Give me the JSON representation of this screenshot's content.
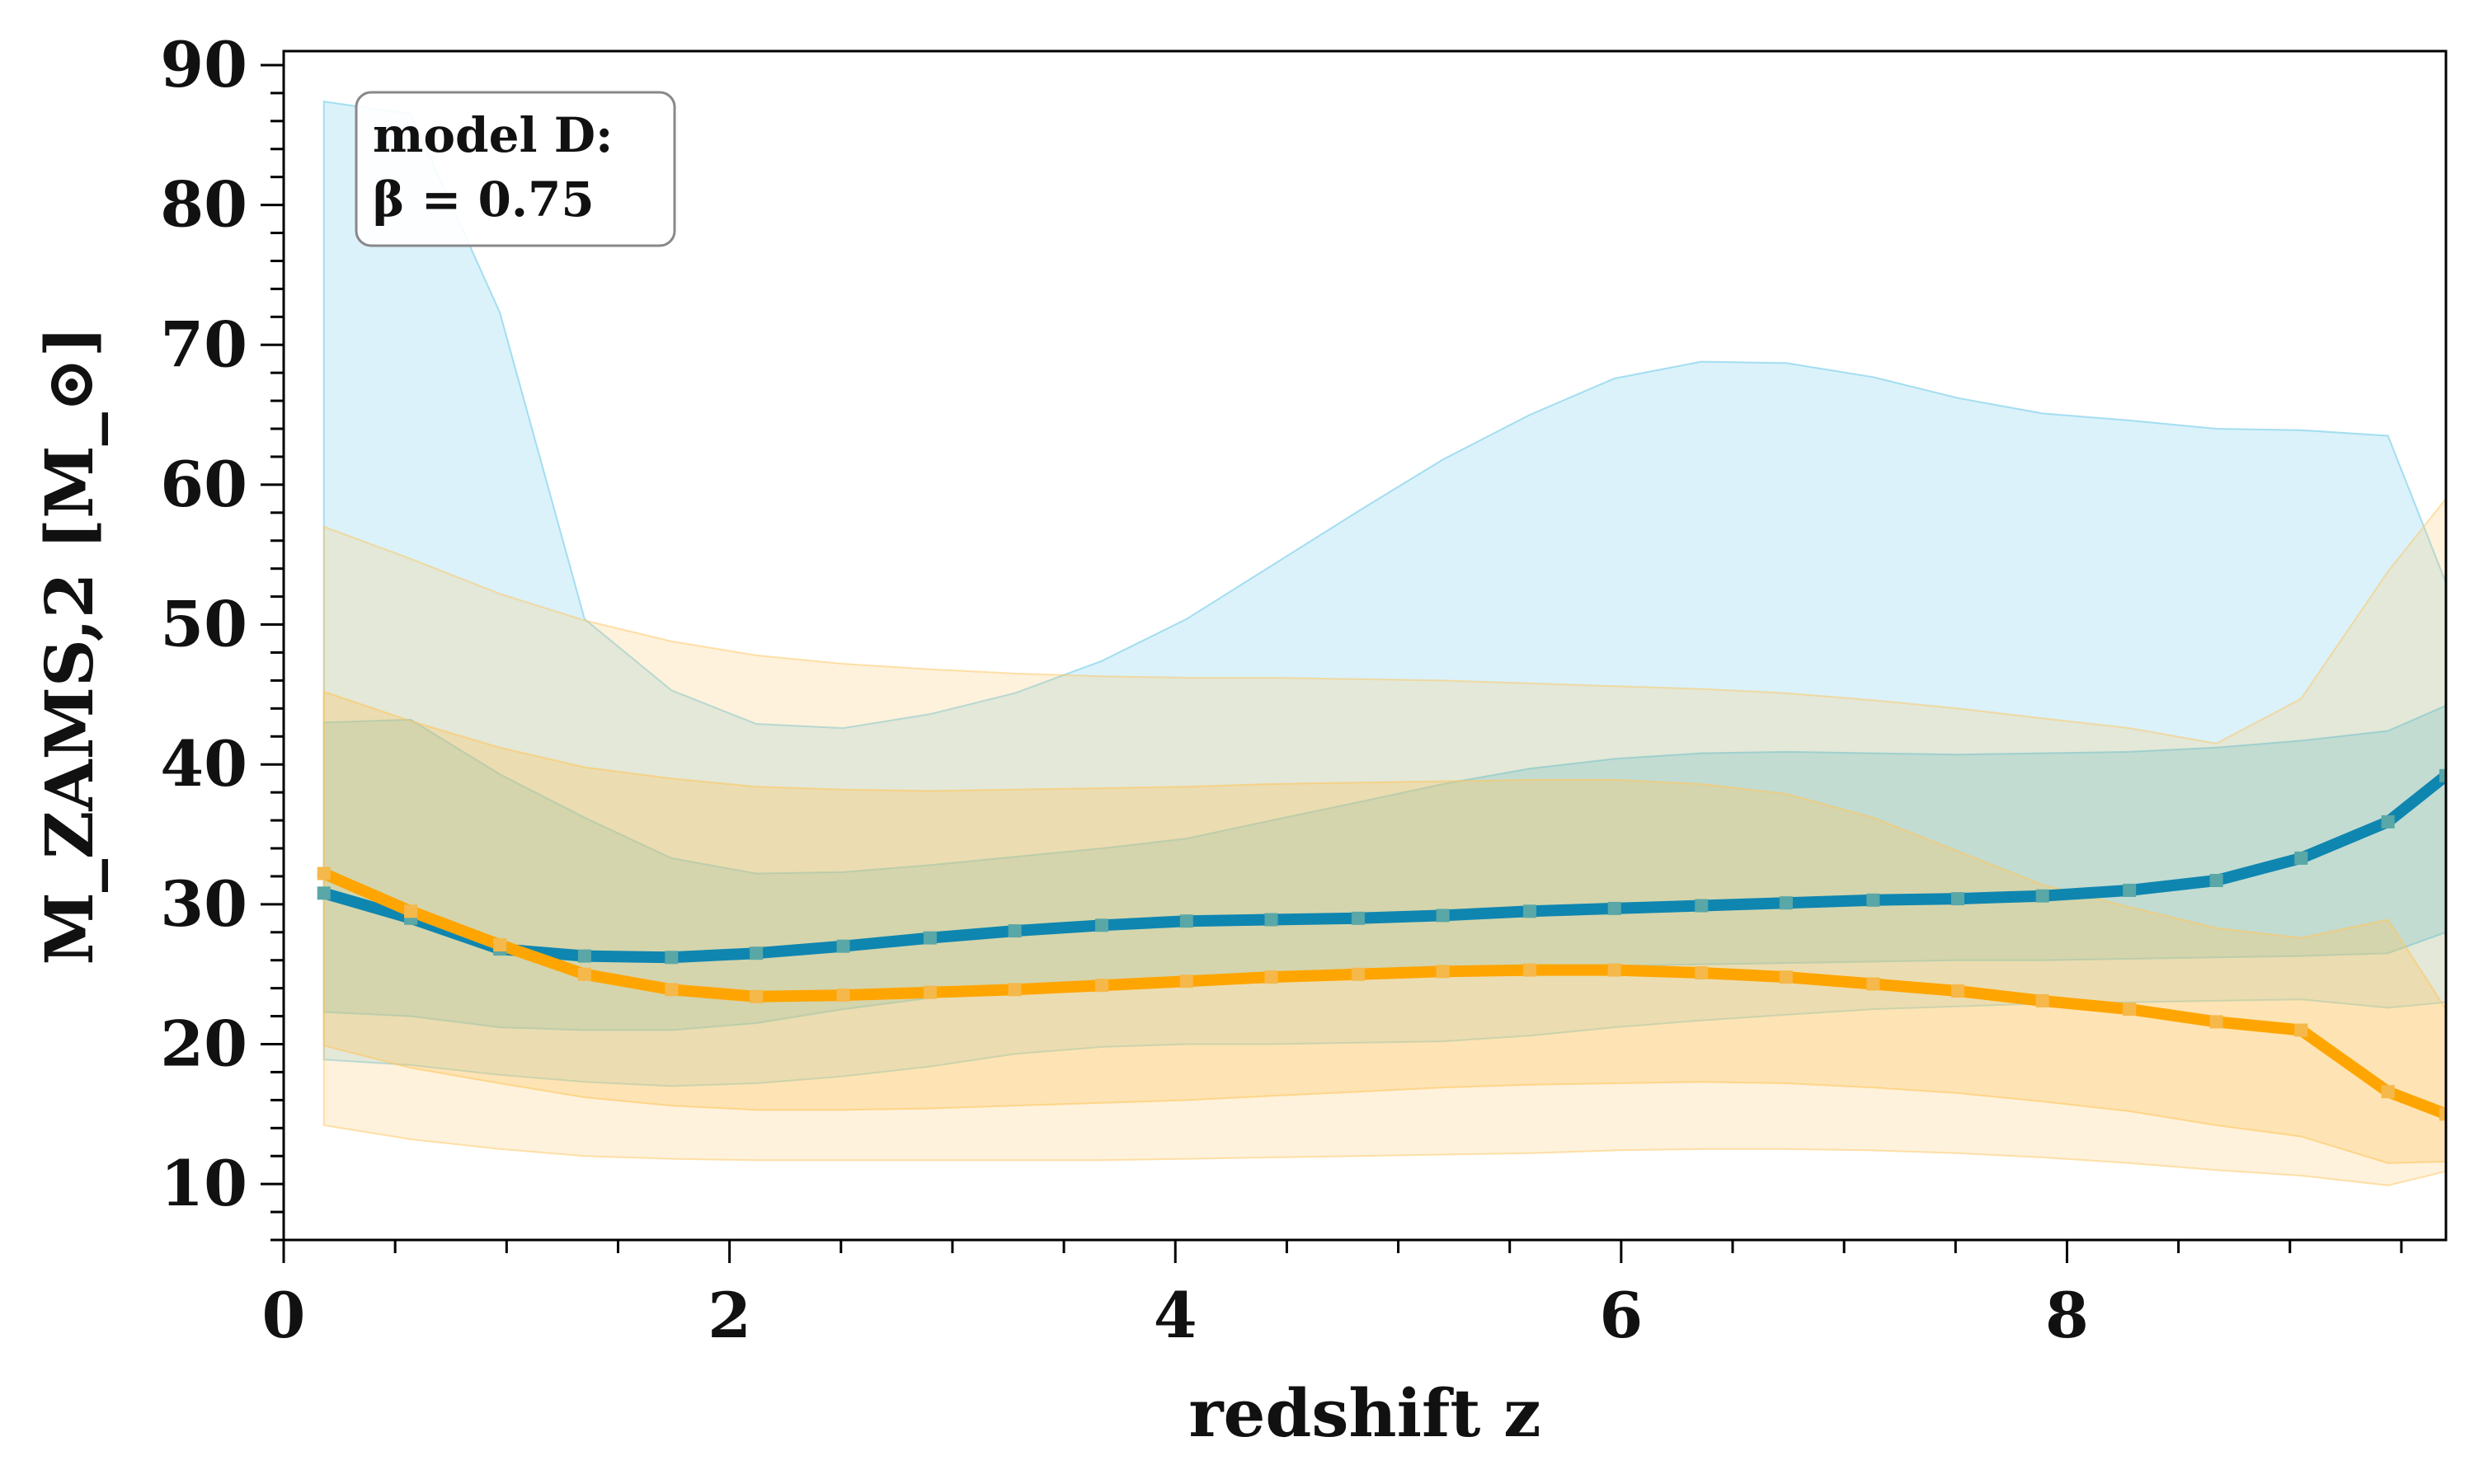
{
  "chart_data": {
    "type": "line",
    "xlabel": "redshift z",
    "ylabel": "M_ZAMS,2 [M_⊙]",
    "xlim": [
      0,
      9.7
    ],
    "ylim": [
      6,
      91
    ],
    "x_major_ticks": [
      0,
      2,
      4,
      6,
      8
    ],
    "x_tick_labels": [
      "0",
      "2",
      "4",
      "6",
      "8"
    ],
    "x_minor_step": 0.5,
    "y_major_ticks": [
      10,
      20,
      30,
      40,
      50,
      60,
      70,
      80,
      90
    ],
    "y_tick_labels": [
      "10",
      "20",
      "30",
      "40",
      "50",
      "60",
      "70",
      "80",
      "90"
    ],
    "y_minor_step": 2,
    "grid": false,
    "annotation": {
      "line1": "model D:",
      "line2": "β = 0.75"
    },
    "x": [
      0.18,
      0.57,
      0.97,
      1.35,
      1.74,
      2.12,
      2.51,
      2.9,
      3.28,
      3.67,
      4.05,
      4.43,
      4.82,
      5.2,
      5.59,
      5.97,
      6.36,
      6.74,
      7.13,
      7.51,
      7.89,
      8.28,
      8.67,
      9.05,
      9.44,
      9.7
    ],
    "series": [
      {
        "color": "#0f86b0",
        "band_color": "#5bc4e6",
        "median": [
          30.8,
          29.0,
          26.8,
          26.3,
          26.2,
          26.5,
          27.0,
          27.6,
          28.1,
          28.5,
          28.8,
          28.9,
          29.0,
          29.2,
          29.5,
          29.7,
          29.9,
          30.1,
          30.3,
          30.4,
          30.6,
          31.0,
          31.7,
          33.3,
          35.9,
          39.2
        ],
        "inner_low": [
          22.3,
          22.0,
          21.2,
          21.0,
          21.0,
          21.5,
          22.5,
          23.3,
          24.0,
          24.4,
          24.8,
          25.0,
          25.1,
          25.3,
          25.5,
          25.6,
          25.7,
          25.8,
          25.9,
          26.0,
          26.0,
          26.1,
          26.2,
          26.3,
          26.5,
          28.0
        ],
        "inner_high": [
          43.0,
          43.2,
          39.3,
          36.2,
          33.3,
          32.2,
          32.3,
          32.8,
          33.4,
          34.0,
          34.7,
          36.0,
          37.3,
          38.6,
          39.7,
          40.4,
          40.8,
          40.9,
          40.8,
          40.7,
          40.8,
          40.9,
          41.2,
          41.7,
          42.4,
          44.2
        ],
        "outer_low": [
          18.9,
          18.5,
          17.8,
          17.3,
          17.0,
          17.2,
          17.7,
          18.4,
          19.3,
          19.8,
          20.0,
          20.0,
          20.1,
          20.2,
          20.6,
          21.2,
          21.7,
          22.1,
          22.5,
          22.7,
          22.9,
          23.0,
          23.1,
          23.2,
          22.6,
          23.0
        ],
        "outer_high": [
          87.4,
          86.5,
          72.3,
          50.4,
          45.3,
          42.9,
          42.6,
          43.6,
          45.1,
          47.4,
          50.4,
          54.2,
          58.1,
          61.8,
          65.0,
          67.6,
          68.8,
          68.7,
          67.7,
          66.2,
          65.1,
          64.6,
          64.0,
          63.9,
          63.5,
          53.0
        ]
      },
      {
        "color": "#ffa502",
        "band_color": "#fdc660",
        "median": [
          32.2,
          29.5,
          27.1,
          25.0,
          23.9,
          23.4,
          23.5,
          23.7,
          23.9,
          24.2,
          24.5,
          24.8,
          25.0,
          25.2,
          25.3,
          25.3,
          25.1,
          24.8,
          24.3,
          23.8,
          23.1,
          22.5,
          21.6,
          21.0,
          16.6,
          15.0
        ],
        "inner_low": [
          19.9,
          18.3,
          17.2,
          16.2,
          15.6,
          15.3,
          15.3,
          15.4,
          15.6,
          15.8,
          16.0,
          16.3,
          16.6,
          16.9,
          17.1,
          17.2,
          17.3,
          17.2,
          16.9,
          16.5,
          15.9,
          15.2,
          14.2,
          13.4,
          11.5,
          11.6
        ],
        "inner_high": [
          45.2,
          43.1,
          41.2,
          39.8,
          39.0,
          38.4,
          38.2,
          38.1,
          38.2,
          38.3,
          38.4,
          38.6,
          38.7,
          38.8,
          38.9,
          38.9,
          38.6,
          37.9,
          36.2,
          33.8,
          31.4,
          29.8,
          28.3,
          27.6,
          28.9,
          22.5
        ],
        "outer_low": [
          14.2,
          13.2,
          12.5,
          12.0,
          11.8,
          11.7,
          11.7,
          11.7,
          11.7,
          11.7,
          11.8,
          11.9,
          12.0,
          12.1,
          12.2,
          12.4,
          12.5,
          12.5,
          12.4,
          12.2,
          11.9,
          11.5,
          11.0,
          10.6,
          9.9,
          10.9
        ],
        "outer_high": [
          57.0,
          54.7,
          52.2,
          50.3,
          48.8,
          47.8,
          47.2,
          46.8,
          46.5,
          46.3,
          46.2,
          46.2,
          46.1,
          46.0,
          45.8,
          45.6,
          45.4,
          45.1,
          44.6,
          44.0,
          43.3,
          42.6,
          41.5,
          44.7,
          53.8,
          59.0
        ]
      }
    ]
  }
}
